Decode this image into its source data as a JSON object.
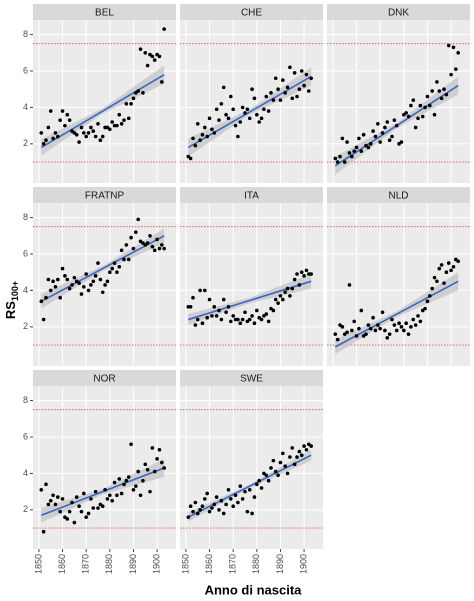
{
  "figure": {
    "ylabel": "RS",
    "ylabel_subscript": "100+",
    "xlabel": "Anno di nascita"
  },
  "chart_data": [
    {
      "type": "scatter",
      "title": "BEL",
      "xlim": [
        1847.5,
        1908
      ],
      "ylim": [
        -0.15,
        8.8
      ],
      "xticks": [
        1850,
        1860,
        1870,
        1880,
        1890,
        1900
      ],
      "yticks": [
        2,
        4,
        6,
        8
      ],
      "grid": true,
      "color": "#000000",
      "x": [
        1851,
        1852,
        1853,
        1854,
        1855,
        1856,
        1857,
        1858,
        1859,
        1860,
        1861,
        1862,
        1863,
        1864,
        1865,
        1866,
        1867,
        1868,
        1869,
        1870,
        1871,
        1872,
        1873,
        1874,
        1875,
        1876,
        1877,
        1878,
        1879,
        1880,
        1881,
        1882,
        1883,
        1884,
        1885,
        1886,
        1887,
        1888,
        1889,
        1890,
        1891,
        1892,
        1893,
        1894,
        1895,
        1896,
        1897,
        1898,
        1899,
        1900,
        1901,
        1902,
        1903
      ],
      "values": [
        2.6,
        2.0,
        2.2,
        2.9,
        3.8,
        2.3,
        2.6,
        2.4,
        3.3,
        3.8,
        3.0,
        3.6,
        3.3,
        2.7,
        2.6,
        2.5,
        2.1,
        2.9,
        2.6,
        2.4,
        2.6,
        2.9,
        2.7,
        2.4,
        3.1,
        2.2,
        2.4,
        2.9,
        2.9,
        2.8,
        3.2,
        3.0,
        3.0,
        3.6,
        3.1,
        3.3,
        4.2,
        3.4,
        4.2,
        4.5,
        4.8,
        4.9,
        7.2,
        4.8,
        7.0,
        6.3,
        6.9,
        6.8,
        6.6,
        6.9,
        6.8,
        5.4,
        8.3
      ],
      "trend": {
        "color": "#3a66c4",
        "x": [
          1851,
          1903
        ],
        "values": [
          1.8,
          5.8
        ]
      },
      "ci": {
        "color": "#c4c4c4",
        "x": [
          1851,
          1877,
          1903
        ],
        "lower": [
          1.35,
          3.65,
          5.3
        ],
        "upper": [
          2.25,
          3.95,
          6.3
        ]
      },
      "hlines": [
        1,
        7.5
      ],
      "hline_color": "#e05050"
    },
    {
      "type": "scatter",
      "title": "CHE",
      "xlim": [
        1847.5,
        1908
      ],
      "ylim": [
        -0.15,
        8.8
      ],
      "xticks": [
        1850,
        1860,
        1870,
        1880,
        1890,
        1900
      ],
      "yticks": [
        2,
        4,
        6,
        8
      ],
      "grid": true,
      "color": "#000000",
      "x": [
        1851,
        1852,
        1853,
        1854,
        1855,
        1856,
        1857,
        1858,
        1859,
        1860,
        1861,
        1862,
        1863,
        1864,
        1865,
        1866,
        1867,
        1868,
        1869,
        1870,
        1871,
        1872,
        1873,
        1874,
        1875,
        1876,
        1877,
        1878,
        1879,
        1880,
        1881,
        1882,
        1883,
        1884,
        1885,
        1886,
        1887,
        1888,
        1889,
        1890,
        1891,
        1892,
        1893,
        1894,
        1895,
        1896,
        1897,
        1898,
        1899,
        1900,
        1901,
        1902,
        1903
      ],
      "values": [
        1.3,
        1.2,
        2.3,
        1.9,
        3.1,
        2.2,
        2.5,
        2.9,
        2.4,
        3.4,
        2.8,
        2.6,
        3.9,
        3.3,
        4.2,
        5.1,
        3.6,
        3.4,
        4.6,
        3.9,
        3.0,
        2.4,
        3.2,
        4.0,
        3.7,
        3.9,
        3.4,
        5.0,
        4.5,
        3.6,
        3.2,
        3.4,
        3.9,
        4.6,
        3.8,
        4.8,
        4.4,
        5.6,
        5.0,
        4.4,
        5.5,
        4.8,
        5.1,
        6.2,
        4.5,
        5.9,
        4.6,
        5.0,
        6.0,
        5.2,
        5.8,
        4.9,
        5.6
      ],
      "trend": {
        "color": "#3a66c4",
        "x": [
          1851,
          1903
        ],
        "values": [
          1.8,
          5.7
        ]
      },
      "ci": {
        "color": "#c4c4c4",
        "x": [
          1851,
          1877,
          1903
        ],
        "lower": [
          1.3,
          3.6,
          5.2
        ],
        "upper": [
          2.3,
          3.9,
          6.2
        ]
      },
      "hlines": [
        1,
        7.5
      ],
      "hline_color": "#e05050"
    },
    {
      "type": "scatter",
      "title": "DNK",
      "xlim": [
        1847.5,
        1908
      ],
      "ylim": [
        -0.15,
        8.8
      ],
      "xticks": [
        1850,
        1860,
        1870,
        1880,
        1890,
        1900
      ],
      "yticks": [
        2,
        4,
        6,
        8
      ],
      "grid": true,
      "color": "#000000",
      "x": [
        1851,
        1852,
        1853,
        1854,
        1855,
        1856,
        1857,
        1858,
        1859,
        1860,
        1861,
        1862,
        1863,
        1864,
        1865,
        1866,
        1867,
        1868,
        1869,
        1870,
        1871,
        1872,
        1873,
        1874,
        1875,
        1876,
        1877,
        1878,
        1879,
        1880,
        1881,
        1882,
        1883,
        1884,
        1885,
        1886,
        1887,
        1888,
        1889,
        1890,
        1891,
        1892,
        1893,
        1894,
        1895,
        1896,
        1897,
        1898,
        1899,
        1900,
        1901,
        1902,
        1903
      ],
      "values": [
        1.2,
        1.0,
        1.3,
        2.3,
        1.0,
        2.1,
        1.5,
        1.3,
        1.6,
        1.8,
        2.3,
        1.6,
        2.5,
        1.9,
        1.8,
        2.0,
        2.7,
        2.4,
        3.1,
        2.1,
        2.6,
        2.9,
        3.2,
        2.2,
        2.4,
        3.3,
        3.0,
        2.0,
        2.1,
        3.6,
        3.7,
        3.5,
        4.1,
        4.4,
        2.9,
        3.4,
        4.1,
        3.5,
        4.0,
        4.6,
        4.1,
        4.9,
        3.6,
        5.4,
        4.9,
        4.5,
        5.0,
        4.7,
        7.4,
        5.8,
        7.3,
        6.1,
        7.0
      ],
      "trend": {
        "color": "#3a66c4",
        "x": [
          1851,
          1903
        ],
        "values": [
          0.8,
          5.2
        ]
      },
      "ci": {
        "color": "#c4c4c4",
        "x": [
          1851,
          1877,
          1903
        ],
        "lower": [
          0.3,
          2.85,
          4.7
        ],
        "upper": [
          1.3,
          3.15,
          5.7
        ]
      },
      "hlines": [
        1,
        7.5
      ],
      "hline_color": "#e05050"
    },
    {
      "type": "scatter",
      "title": "FRATNP",
      "xlim": [
        1847.5,
        1908
      ],
      "ylim": [
        -0.15,
        8.8
      ],
      "xticks": [
        1850,
        1860,
        1870,
        1880,
        1890,
        1900
      ],
      "yticks": [
        2,
        4,
        6,
        8
      ],
      "grid": true,
      "color": "#000000",
      "x": [
        1851,
        1852,
        1853,
        1854,
        1855,
        1856,
        1857,
        1858,
        1859,
        1860,
        1861,
        1862,
        1863,
        1864,
        1865,
        1866,
        1867,
        1868,
        1869,
        1870,
        1871,
        1872,
        1873,
        1874,
        1875,
        1876,
        1877,
        1878,
        1879,
        1880,
        1881,
        1882,
        1883,
        1884,
        1885,
        1886,
        1887,
        1888,
        1889,
        1890,
        1891,
        1892,
        1893,
        1894,
        1895,
        1896,
        1897,
        1898,
        1899,
        1900,
        1901,
        1902,
        1903
      ],
      "values": [
        3.4,
        2.4,
        3.6,
        4.6,
        4.0,
        4.5,
        4.2,
        4.6,
        3.6,
        5.2,
        4.8,
        4.6,
        4.1,
        4.3,
        4.7,
        4.5,
        4.4,
        3.8,
        4.2,
        4.9,
        4.0,
        4.3,
        4.5,
        4.8,
        5.5,
        4.6,
        3.9,
        4.3,
        4.5,
        5.0,
        5.2,
        5.5,
        5.0,
        5.3,
        6.2,
        5.7,
        6.5,
        5.7,
        6.9,
        6.3,
        7.2,
        7.9,
        6.7,
        6.6,
        6.5,
        6.6,
        7.0,
        6.4,
        6.2,
        6.8,
        6.3,
        6.5,
        6.3
      ],
      "trend": {
        "color": "#3a66c4",
        "x": [
          1851,
          1903
        ],
        "values": [
          3.4,
          7.0
        ]
      },
      "ci": {
        "color": "#c4c4c4",
        "x": [
          1851,
          1877,
          1903
        ],
        "lower": [
          3.0,
          5.05,
          6.6
        ],
        "upper": [
          3.8,
          5.35,
          7.4
        ]
      },
      "hlines": [
        1,
        7.5
      ],
      "hline_color": "#e05050"
    },
    {
      "type": "scatter",
      "title": "ITA",
      "xlim": [
        1847.5,
        1908
      ],
      "ylim": [
        -0.15,
        8.8
      ],
      "xticks": [
        1850,
        1860,
        1870,
        1880,
        1890,
        1900
      ],
      "yticks": [
        2,
        4,
        6,
        8
      ],
      "grid": true,
      "color": "#000000",
      "x": [
        1851,
        1852,
        1853,
        1854,
        1855,
        1856,
        1857,
        1858,
        1859,
        1860,
        1861,
        1862,
        1863,
        1864,
        1865,
        1866,
        1867,
        1868,
        1869,
        1870,
        1871,
        1872,
        1873,
        1874,
        1875,
        1876,
        1877,
        1878,
        1879,
        1880,
        1881,
        1882,
        1883,
        1884,
        1885,
        1886,
        1887,
        1888,
        1889,
        1890,
        1891,
        1892,
        1893,
        1894,
        1895,
        1896,
        1897,
        1898,
        1899,
        1900,
        1901,
        1902,
        1903
      ],
      "values": [
        3.1,
        3.1,
        3.6,
        2.1,
        2.4,
        4.0,
        2.2,
        4.0,
        2.5,
        3.5,
        2.6,
        3.1,
        2.6,
        2.9,
        2.4,
        3.5,
        2.8,
        3.1,
        2.3,
        2.6,
        2.4,
        2.4,
        2.2,
        2.4,
        2.8,
        2.3,
        2.4,
        2.6,
        2.2,
        2.9,
        2.5,
        2.4,
        2.6,
        2.7,
        2.3,
        3.0,
        2.9,
        3.5,
        3.3,
        3.7,
        3.5,
        3.9,
        4.1,
        3.7,
        4.1,
        4.6,
        4.9,
        4.3,
        5.0,
        4.8,
        5.1,
        4.9,
        4.9
      ],
      "trend": {
        "color": "#3a66c4",
        "x": [
          1851,
          1903
        ],
        "values": [
          2.4,
          4.5
        ]
      },
      "ci": {
        "color": "#c4c4c4",
        "x": [
          1851,
          1877,
          1903
        ],
        "lower": [
          2.1,
          3.3,
          4.1
        ],
        "upper": [
          2.7,
          3.6,
          4.9
        ]
      },
      "hlines": [
        1,
        7.5
      ],
      "hline_color": "#e05050"
    },
    {
      "type": "scatter",
      "title": "NLD",
      "xlim": [
        1847.5,
        1908
      ],
      "ylim": [
        -0.15,
        8.8
      ],
      "xticks": [
        1850,
        1860,
        1870,
        1880,
        1890,
        1900
      ],
      "yticks": [
        2,
        4,
        6,
        8
      ],
      "grid": true,
      "color": "#000000",
      "x": [
        1851,
        1852,
        1853,
        1854,
        1855,
        1856,
        1857,
        1858,
        1859,
        1860,
        1861,
        1862,
        1863,
        1864,
        1865,
        1866,
        1867,
        1868,
        1869,
        1870,
        1871,
        1872,
        1873,
        1874,
        1875,
        1876,
        1877,
        1878,
        1879,
        1880,
        1881,
        1882,
        1883,
        1884,
        1885,
        1886,
        1887,
        1888,
        1889,
        1890,
        1891,
        1892,
        1893,
        1894,
        1895,
        1896,
        1897,
        1898,
        1899,
        1900,
        1901,
        1902,
        1903
      ],
      "values": [
        1.6,
        1.3,
        2.1,
        2.0,
        1.6,
        1.7,
        4.3,
        1.8,
        2.3,
        1.5,
        1.9,
        2.9,
        1.5,
        1.6,
        2.1,
        1.9,
        2.5,
        1.8,
        2.1,
        1.9,
        2.8,
        1.8,
        1.4,
        1.6,
        2.4,
        2.1,
        1.8,
        2.2,
        2.0,
        1.8,
        2.2,
        1.6,
        2.0,
        2.4,
        2.1,
        2.6,
        2.3,
        2.9,
        3.0,
        3.4,
        3.7,
        4.1,
        4.7,
        4.5,
        5.2,
        5.4,
        4.4,
        5.0,
        5.5,
        5.1,
        5.3,
        5.7,
        5.6
      ],
      "trend": {
        "color": "#3a66c4",
        "x": [
          1851,
          1903
        ],
        "values": [
          0.9,
          4.5
        ]
      },
      "ci": {
        "color": "#c4c4c4",
        "x": [
          1851,
          1877,
          1903
        ],
        "lower": [
          0.5,
          2.55,
          4.0
        ],
        "upper": [
          1.3,
          2.85,
          5.0
        ]
      },
      "hlines": [
        1,
        7.5
      ],
      "hline_color": "#e05050"
    },
    {
      "type": "scatter",
      "title": "NOR",
      "xlim": [
        1847.5,
        1908
      ],
      "ylim": [
        -0.15,
        8.8
      ],
      "xticks": [
        1850,
        1860,
        1870,
        1880,
        1890,
        1900
      ],
      "yticks": [
        2,
        4,
        6,
        8
      ],
      "grid": true,
      "color": "#000000",
      "x": [
        1851,
        1852,
        1853,
        1854,
        1855,
        1856,
        1857,
        1858,
        1859,
        1860,
        1861,
        1862,
        1863,
        1864,
        1865,
        1866,
        1867,
        1868,
        1869,
        1870,
        1871,
        1872,
        1873,
        1874,
        1875,
        1876,
        1877,
        1878,
        1879,
        1880,
        1881,
        1882,
        1883,
        1884,
        1885,
        1886,
        1887,
        1888,
        1889,
        1890,
        1891,
        1892,
        1893,
        1894,
        1895,
        1896,
        1897,
        1898,
        1899,
        1900,
        1901,
        1902,
        1903
      ],
      "values": [
        3.1,
        0.8,
        3.4,
        2.3,
        2.5,
        2.8,
        2.3,
        2.7,
        1.9,
        2.6,
        1.6,
        1.5,
        1.9,
        2.4,
        1.3,
        2.7,
        2.2,
        1.9,
        2.9,
        1.6,
        1.8,
        2.6,
        2.1,
        3.0,
        2.1,
        2.3,
        2.2,
        3.1,
        2.6,
        2.8,
        2.5,
        3.5,
        2.8,
        3.7,
        2.9,
        3.4,
        3.6,
        3.8,
        5.6,
        3.1,
        3.3,
        4.1,
        2.8,
        3.6,
        4.5,
        4.2,
        3.0,
        5.4,
        4.1,
        4.8,
        5.3,
        4.6,
        4.3
      ],
      "trend": {
        "color": "#3a66c4",
        "x": [
          1851,
          1903
        ],
        "values": [
          1.7,
          4.3
        ]
      },
      "ci": {
        "color": "#c4c4c4",
        "x": [
          1851,
          1877,
          1903
        ],
        "lower": [
          1.3,
          2.85,
          3.8
        ],
        "upper": [
          2.1,
          3.15,
          4.8
        ]
      },
      "hlines": [
        1,
        7.5
      ],
      "hline_color": "#e05050"
    },
    {
      "type": "scatter",
      "title": "SWE",
      "xlim": [
        1847.5,
        1908
      ],
      "ylim": [
        -0.15,
        8.8
      ],
      "xticks": [
        1850,
        1860,
        1870,
        1880,
        1890,
        1900
      ],
      "yticks": [
        2,
        4,
        6,
        8
      ],
      "grid": true,
      "color": "#000000",
      "x": [
        1851,
        1852,
        1853,
        1854,
        1855,
        1856,
        1857,
        1858,
        1859,
        1860,
        1861,
        1862,
        1863,
        1864,
        1865,
        1866,
        1867,
        1868,
        1869,
        1870,
        1871,
        1872,
        1873,
        1874,
        1875,
        1876,
        1877,
        1878,
        1879,
        1880,
        1881,
        1882,
        1883,
        1884,
        1885,
        1886,
        1887,
        1888,
        1889,
        1890,
        1891,
        1892,
        1893,
        1894,
        1895,
        1896,
        1897,
        1898,
        1899,
        1900,
        1901,
        1902,
        1903
      ],
      "values": [
        1.6,
        2.2,
        1.9,
        2.4,
        1.8,
        2.0,
        2.2,
        2.6,
        2.9,
        1.9,
        2.1,
        2.3,
        2.7,
        2.0,
        2.5,
        1.8,
        2.3,
        3.1,
        2.6,
        2.2,
        2.8,
        2.4,
        3.3,
        2.6,
        3.0,
        1.9,
        3.1,
        1.8,
        2.7,
        3.4,
        3.6,
        3.2,
        4.0,
        3.9,
        3.6,
        4.3,
        4.7,
        4.1,
        3.9,
        4.6,
        5.1,
        4.4,
        4.0,
        4.9,
        5.4,
        4.5,
        4.9,
        5.2,
        5.0,
        5.5,
        5.3,
        5.6,
        5.5
      ],
      "trend": {
        "color": "#3a66c4",
        "x": [
          1851,
          1903
        ],
        "values": [
          1.6,
          5.0
        ]
      },
      "ci": {
        "color": "#c4c4c4",
        "x": [
          1851,
          1877,
          1903
        ],
        "lower": [
          1.35,
          3.2,
          4.7
        ],
        "upper": [
          1.85,
          3.4,
          5.3
        ]
      },
      "hlines": [
        1,
        7.5
      ],
      "hline_color": "#e05050"
    }
  ]
}
